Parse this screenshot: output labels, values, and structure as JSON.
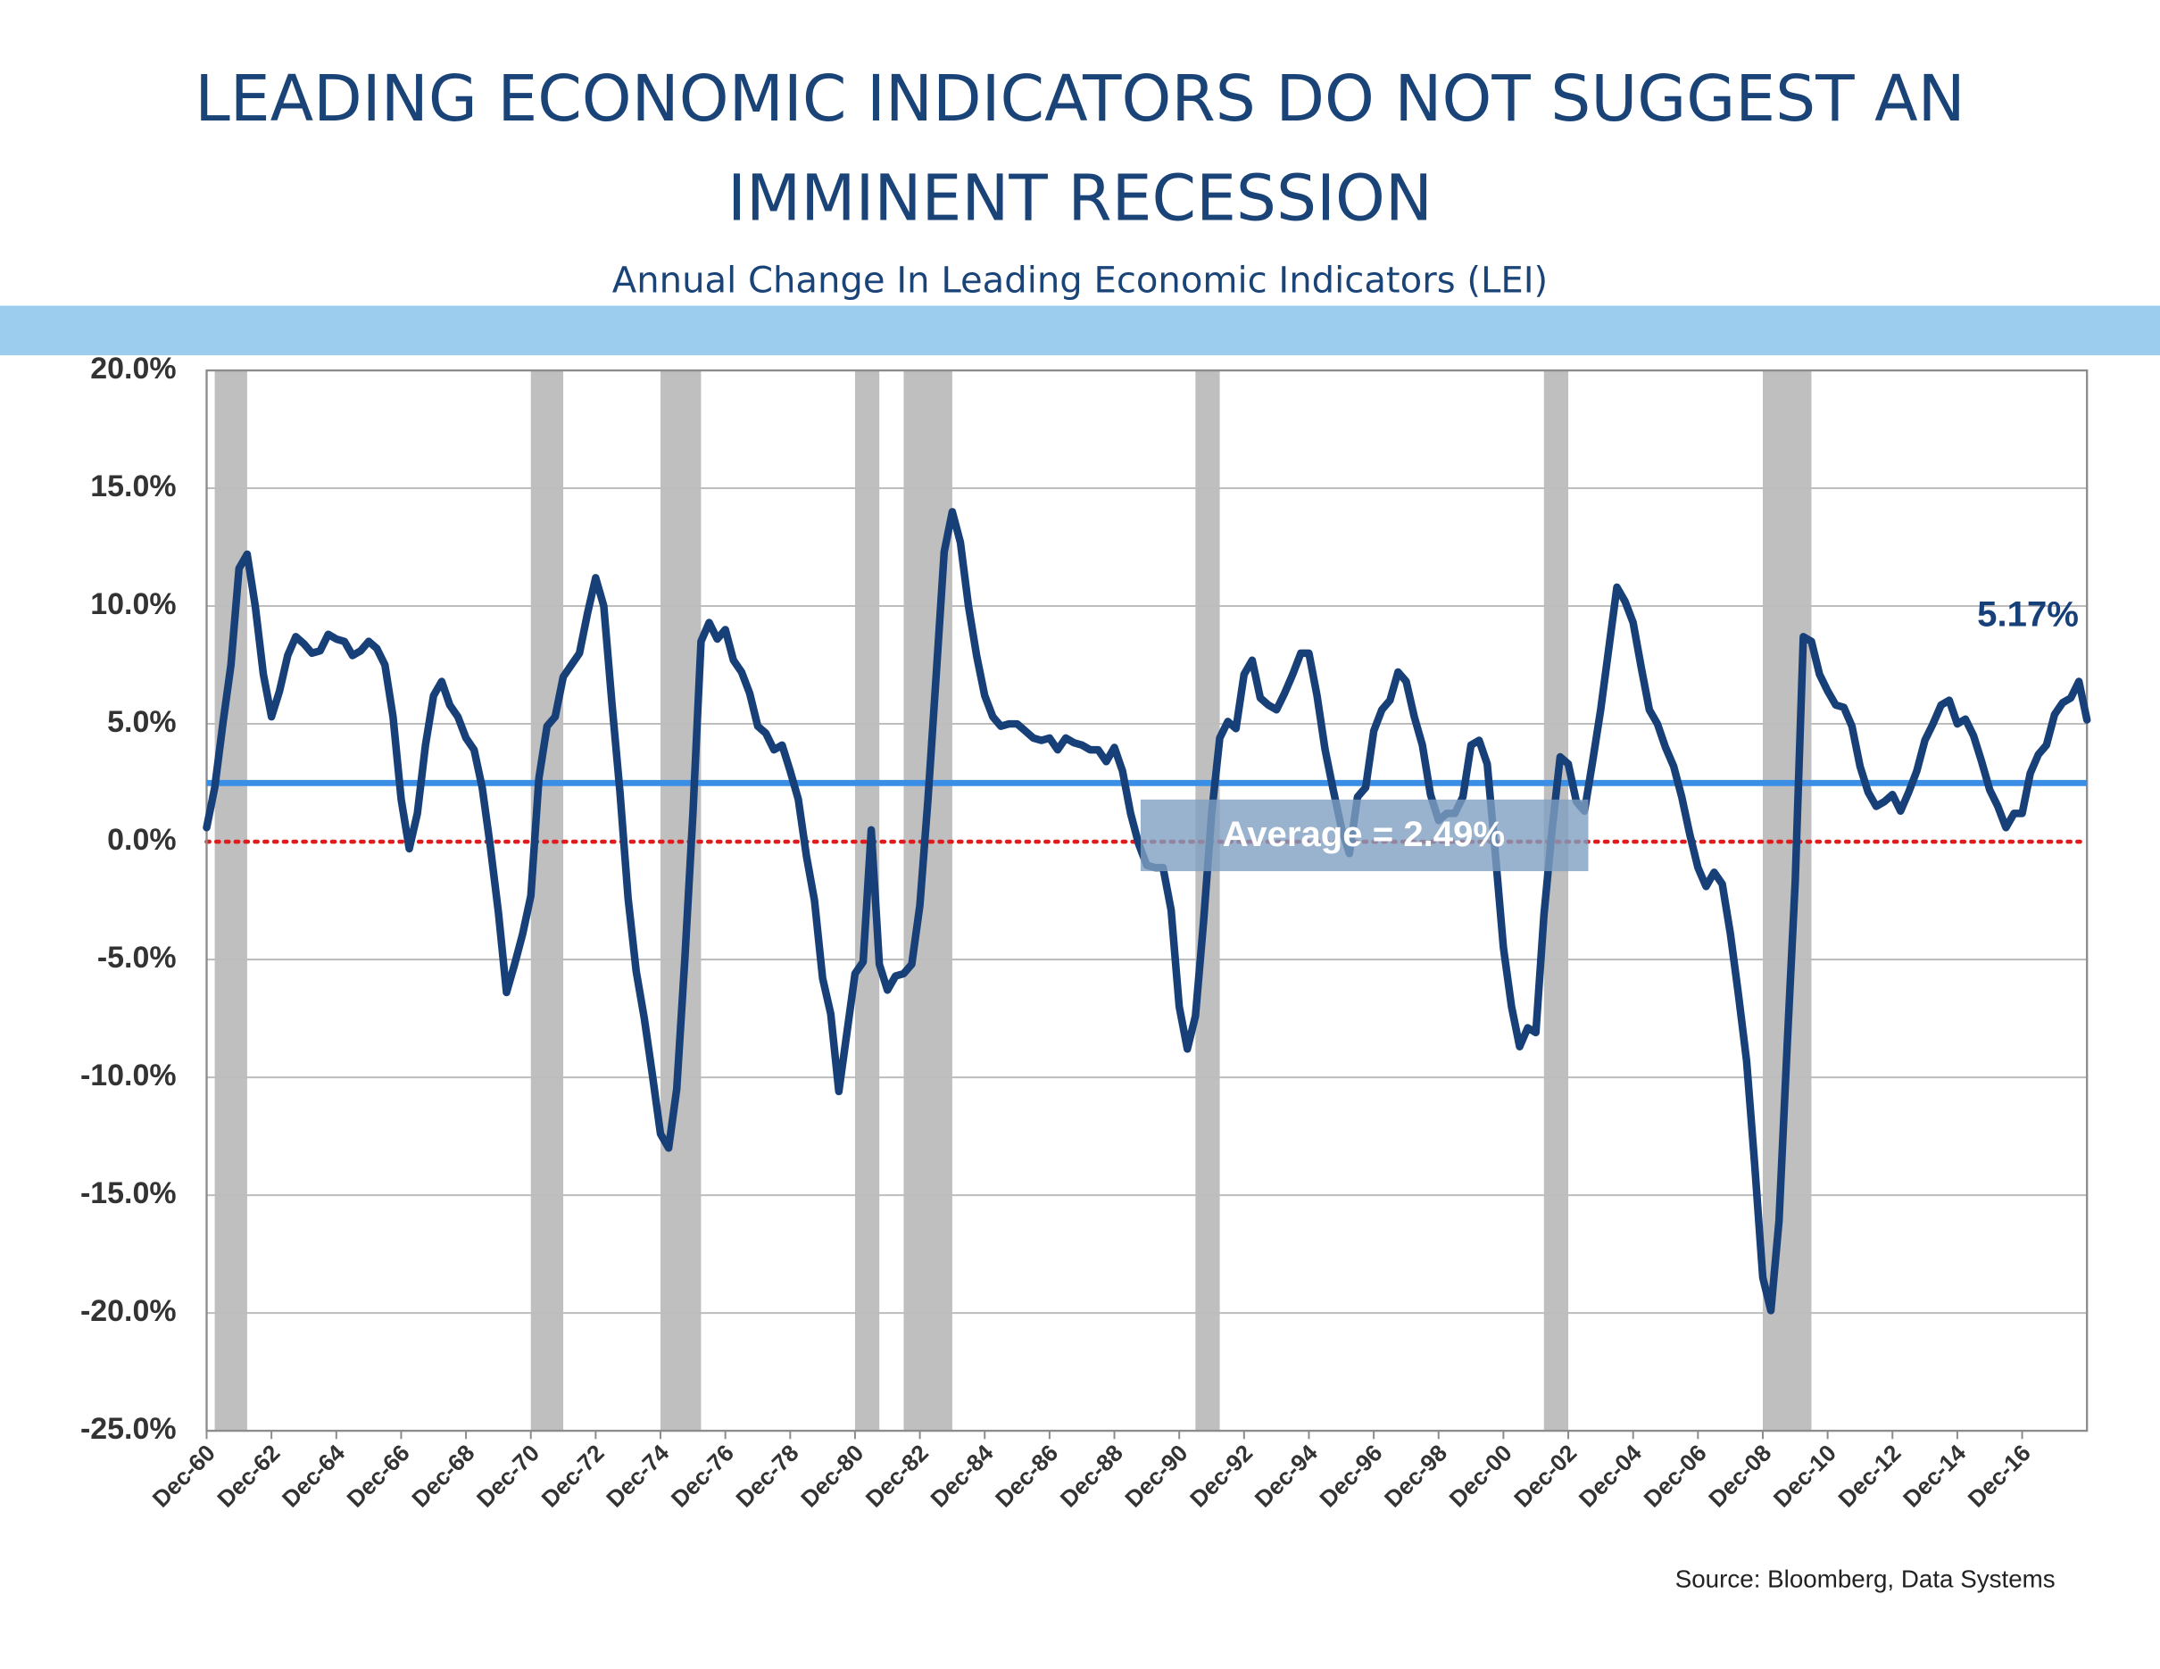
{
  "chart_data": {
    "type": "line",
    "title": [
      "LEADING ECONOMIC INDICATORS DO NOT SUGGEST AN",
      "IMMINENT RECESSION"
    ],
    "subtitle": "Annual Change In Leading Economic Indicators (LEI)",
    "source": "Source:  Bloomberg, Data Systems",
    "x": [
      "Dec-60",
      "Mar-61",
      "Jun-61",
      "Sep-61",
      "Dec-61",
      "Mar-62",
      "Jun-62",
      "Sep-62",
      "Dec-62",
      "Mar-63",
      "Jun-63",
      "Sep-63",
      "Dec-63",
      "Mar-64",
      "Jun-64",
      "Sep-64",
      "Dec-64",
      "Mar-65",
      "Jun-65",
      "Sep-65",
      "Dec-65",
      "Mar-66",
      "Jun-66",
      "Sep-66",
      "Dec-66",
      "Mar-67",
      "Jun-67",
      "Sep-67",
      "Dec-67",
      "Mar-68",
      "Jun-68",
      "Sep-68",
      "Dec-68",
      "Mar-69",
      "Jun-69",
      "Sep-69",
      "Dec-69",
      "Mar-70",
      "Jun-70",
      "Sep-70",
      "Dec-70",
      "Mar-71",
      "Jun-71",
      "Sep-71",
      "Dec-71",
      "Mar-72",
      "Jun-72",
      "Sep-72",
      "Dec-72",
      "Mar-73",
      "Jun-73",
      "Sep-73",
      "Dec-73",
      "Mar-74",
      "Jun-74",
      "Sep-74",
      "Dec-74",
      "Mar-75",
      "Jun-75",
      "Sep-75",
      "Dec-75",
      "Mar-76",
      "Jun-76",
      "Sep-76",
      "Dec-76",
      "Mar-77",
      "Jun-77",
      "Sep-77",
      "Dec-77",
      "Mar-78",
      "Jun-78",
      "Sep-78",
      "Dec-78",
      "Mar-79",
      "Jun-79",
      "Sep-79",
      "Dec-79",
      "Mar-80",
      "Jun-80",
      "Sep-80",
      "Dec-80",
      "Mar-81",
      "Jun-81",
      "Sep-81",
      "Dec-81",
      "Mar-82",
      "Jun-82",
      "Sep-82",
      "Dec-82",
      "Mar-83",
      "Jun-83",
      "Sep-83",
      "Dec-83",
      "Mar-84",
      "Jun-84",
      "Sep-84",
      "Dec-84",
      "Mar-85",
      "Jun-85",
      "Sep-85",
      "Dec-85",
      "Mar-86",
      "Jun-86",
      "Sep-86",
      "Dec-86",
      "Mar-87",
      "Jun-87",
      "Sep-87",
      "Dec-87",
      "Mar-88",
      "Jun-88",
      "Sep-88",
      "Dec-88",
      "Mar-89",
      "Jun-89",
      "Sep-89",
      "Dec-89",
      "Mar-90",
      "Jun-90",
      "Sep-90",
      "Dec-90",
      "Mar-91",
      "Jun-91",
      "Sep-91",
      "Dec-91",
      "Mar-92",
      "Jun-92",
      "Sep-92",
      "Dec-92",
      "Mar-93",
      "Jun-93",
      "Sep-93",
      "Dec-93",
      "Mar-94",
      "Jun-94",
      "Sep-94",
      "Dec-94",
      "Mar-95",
      "Jun-95",
      "Sep-95",
      "Dec-95",
      "Mar-96",
      "Jun-96",
      "Sep-96",
      "Dec-96",
      "Mar-97",
      "Jun-97",
      "Sep-97",
      "Dec-97",
      "Mar-98",
      "Jun-98",
      "Sep-98",
      "Dec-98",
      "Mar-99",
      "Jun-99",
      "Sep-99",
      "Dec-99",
      "Mar-00",
      "Jun-00",
      "Sep-00",
      "Dec-00",
      "Mar-01",
      "Jun-01",
      "Sep-01",
      "Dec-01",
      "Mar-02",
      "Jun-02",
      "Sep-02",
      "Dec-02",
      "Mar-03",
      "Jun-03",
      "Sep-03",
      "Dec-03",
      "Mar-04",
      "Jun-04",
      "Sep-04",
      "Dec-04",
      "Mar-05",
      "Jun-05",
      "Sep-05",
      "Dec-05",
      "Mar-06",
      "Jun-06",
      "Sep-06",
      "Dec-06",
      "Mar-07",
      "Jun-07",
      "Sep-07",
      "Dec-07",
      "Mar-08",
      "Jun-08",
      "Sep-08",
      "Dec-08",
      "Mar-09",
      "Jun-09",
      "Sep-09",
      "Dec-09",
      "Mar-10",
      "Jun-10",
      "Sep-10",
      "Dec-10",
      "Mar-11",
      "Jun-11",
      "Sep-11",
      "Dec-11",
      "Mar-12",
      "Jun-12",
      "Sep-12",
      "Dec-12",
      "Mar-13",
      "Jun-13",
      "Sep-13",
      "Dec-13",
      "Mar-14",
      "Jun-14",
      "Sep-14",
      "Dec-14",
      "Mar-15",
      "Jun-15",
      "Sep-15",
      "Dec-15",
      "Mar-16",
      "Jun-16",
      "Sep-16",
      "Dec-16",
      "Mar-17",
      "Jun-17",
      "Sep-17",
      "Dec-17",
      "Mar-18",
      "Jun-18",
      "Sep-18",
      "Dec-18"
    ],
    "series": [
      {
        "name": "LEI annual change",
        "color": "#173f78",
        "values": [
          0.6,
          2.3,
          5.0,
          7.5,
          11.6,
          12.2,
          10.0,
          7.1,
          5.3,
          6.4,
          7.9,
          8.7,
          8.4,
          8.0,
          8.1,
          8.8,
          8.6,
          8.5,
          7.9,
          8.1,
          8.5,
          8.2,
          7.5,
          5.3,
          1.8,
          -0.3,
          1.2,
          4.1,
          6.2,
          6.8,
          5.8,
          5.3,
          4.4,
          3.9,
          2.3,
          -0.2,
          -3.0,
          -6.4,
          -5.2,
          -3.9,
          -2.3,
          2.7,
          4.9,
          5.3,
          7.0,
          7.5,
          8.0,
          9.7,
          11.2,
          10.0,
          5.9,
          2.1,
          -2.4,
          -5.5,
          -7.5,
          -9.9,
          -12.4,
          -13.0,
          -10.5,
          -5.0,
          1.2,
          8.5,
          9.3,
          8.6,
          9.0,
          7.7,
          7.2,
          6.3,
          4.9,
          4.6,
          3.9,
          4.1,
          3.0,
          1.8,
          -0.6,
          -2.5,
          -5.8,
          -7.3,
          -10.6,
          -8.1,
          -5.6,
          -5.1,
          0.5,
          -5.2,
          -6.3,
          -5.7,
          -5.6,
          -5.2,
          -2.7,
          1.8,
          7.0,
          12.3,
          14.0,
          12.7,
          10.0,
          7.9,
          6.2,
          5.3,
          4.9,
          5.0,
          5.0,
          4.7,
          4.4,
          4.3,
          4.4,
          3.9,
          4.4,
          4.2,
          4.1,
          3.9,
          3.9,
          3.4,
          4.0,
          3.0,
          1.2,
          -0.1,
          -1.0,
          -1.1,
          -1.1,
          -2.9,
          -7.0,
          -8.8,
          -7.4,
          -3.4,
          1.2,
          4.4,
          5.1,
          4.8,
          7.1,
          7.7,
          6.1,
          5.8,
          5.6,
          6.3,
          7.1,
          8.0,
          8.0,
          6.2,
          3.9,
          2.2,
          0.6,
          -0.5,
          1.9,
          2.3,
          4.7,
          5.6,
          6.0,
          7.2,
          6.8,
          5.3,
          4.1,
          2.0,
          0.9,
          1.2,
          1.2,
          1.9,
          4.1,
          4.3,
          3.3,
          -0.5,
          -4.5,
          -7.0,
          -8.7,
          -7.9,
          -8.1,
          -3.1,
          0.5,
          3.6,
          3.3,
          1.7,
          1.3,
          3.4,
          5.6,
          8.2,
          10.8,
          10.2,
          9.3,
          7.4,
          5.6,
          5.0,
          4.0,
          3.2,
          1.9,
          0.3,
          -1.1,
          -1.9,
          -1.3,
          -1.8,
          -3.9,
          -6.5,
          -9.3,
          -13.7,
          -18.5,
          -19.9,
          -16.1,
          -8.7,
          -1.7,
          8.7,
          8.5,
          7.1,
          6.4,
          5.8,
          5.7,
          4.9,
          3.2,
          2.1,
          1.5,
          1.7,
          2.0,
          1.3,
          2.1,
          3.0,
          4.3,
          5.0,
          5.8,
          6.0,
          5.0,
          5.2,
          4.5,
          3.4,
          2.2,
          1.5,
          0.6,
          1.2,
          1.2,
          2.9,
          3.7,
          4.1,
          5.4,
          5.9,
          6.1,
          6.8,
          5.17
        ],
        "value_labels": {
          "232": "5.17%"
        }
      }
    ],
    "xlim": [
      "Dec-60",
      "Dec-18"
    ],
    "xticks": [
      "Dec-60",
      "Dec-62",
      "Dec-64",
      "Dec-66",
      "Dec-68",
      "Dec-70",
      "Dec-72",
      "Dec-74",
      "Dec-76",
      "Dec-78",
      "Dec-80",
      "Dec-82",
      "Dec-84",
      "Dec-86",
      "Dec-88",
      "Dec-90",
      "Dec-92",
      "Dec-94",
      "Dec-96",
      "Dec-98",
      "Dec-00",
      "Dec-02",
      "Dec-04",
      "Dec-06",
      "Dec-08",
      "Dec-10",
      "Dec-12",
      "Dec-14",
      "Dec-16"
    ],
    "ylim": [
      -25,
      20
    ],
    "yticks": [
      {
        "value": -25,
        "label": "-25.0%"
      },
      {
        "value": -20,
        "label": "-20.0%"
      },
      {
        "value": -15,
        "label": "-15.0%"
      },
      {
        "value": -10,
        "label": "-10.0%"
      },
      {
        "value": -5,
        "label": "-5.0%"
      },
      {
        "value": 0,
        "label": "0.0%"
      },
      {
        "value": 5,
        "label": "5.0%"
      },
      {
        "value": 10,
        "label": "10.0%"
      },
      {
        "value": 15,
        "label": "15.0%"
      },
      {
        "value": 20,
        "label": "20.0%"
      }
    ],
    "grid": true,
    "zero_line_color": "#e01b1b",
    "average": {
      "value": 2.49,
      "label": "Average = 2.49%",
      "color": "#3a8ee6"
    },
    "recessions": [
      [
        "Mar-61",
        "Mar-62"
      ],
      [
        "Dec-70",
        "Dec-71"
      ],
      [
        "Dec-74",
        "Mar-76"
      ],
      [
        "Dec-80",
        "Sep-81"
      ],
      [
        "Jun-82",
        "Dec-83"
      ],
      [
        "Jun-91",
        "Mar-92"
      ],
      [
        "Mar-02",
        "Dec-02"
      ],
      [
        "Dec-08",
        "Jun-10"
      ]
    ],
    "recession_color": "#bfbfbf"
  }
}
